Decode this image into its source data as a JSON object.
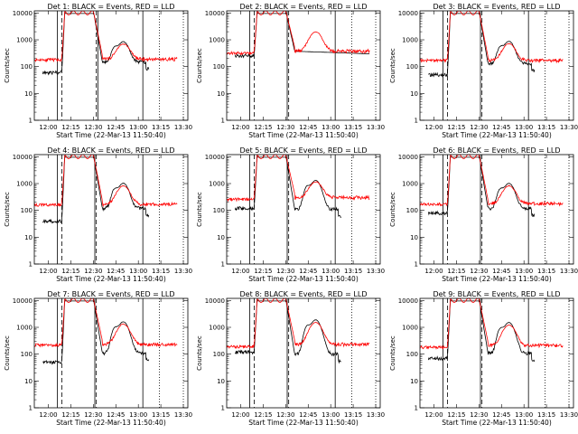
{
  "chart_data": {
    "type": "line",
    "layout": "3x3 grid of panels",
    "xaxis": {
      "xlabel": "Start Time (22-Mar-13 11:50:40)",
      "ticks": [
        "12:00",
        "12:15",
        "12:30",
        "12:45",
        "13:00",
        "13:15",
        "13:30"
      ],
      "range": [
        "11:50:40",
        "13:33"
      ]
    },
    "yaxis": {
      "ylabel": "Counts/sec",
      "scale": "log",
      "ticks": [
        "1",
        "10",
        "100",
        "1000",
        "10000"
      ],
      "range": [
        1,
        12000
      ]
    },
    "series_colors": {
      "Events": "#000000",
      "LLD": "#ff0000"
    },
    "panels": [
      {
        "title": "Det 1: BLACK = Events, RED = LLD",
        "events_peak": 12000,
        "lld_pre": 180,
        "lld_post": 190,
        "ev_pre": 60,
        "ev_post": 150,
        "second_peak": 700,
        "flat_ev": 0,
        "x": [
          "11:51",
          "11:55",
          "11:58",
          "12:00",
          "12:04",
          "12:06",
          "12:08",
          "12:10",
          "12:12",
          "12:15",
          "12:18",
          "12:22",
          "12:26",
          "12:30",
          "12:33",
          "12:36",
          "12:39",
          "12:42",
          "12:45",
          "12:48",
          "12:51",
          "12:54",
          "12:57",
          "13:00",
          "13:03",
          "13:06",
          "13:10",
          "13:14",
          "13:18",
          "13:22",
          "13:26",
          "13:29"
        ],
        "vlines_solid": [
          "12:06",
          "12:33",
          "13:03"
        ],
        "vlines_dashed": [
          "12:09",
          "12:32"
        ],
        "vlines_dotted": [
          "13:14",
          "13:30"
        ]
      },
      {
        "title": "Det 2: BLACK = Events, RED = LLD",
        "events_peak": 12000,
        "lld_pre": 320,
        "lld_post": 380,
        "ev_pre": 250,
        "ev_post": 380,
        "second_peak": 2200,
        "flat_ev": 1,
        "vlines_solid": [
          "12:06",
          "12:31",
          "13:03"
        ],
        "vlines_dashed": [
          "12:09",
          "12:32"
        ],
        "vlines_dotted": [
          "13:14",
          "13:30"
        ]
      },
      {
        "title": "Det 3: BLACK = Events, RED = LLD",
        "events_peak": 12000,
        "lld_pre": 170,
        "lld_post": 170,
        "ev_pre": 50,
        "ev_post": 130,
        "second_peak": 750,
        "flat_ev": 0,
        "vlines_solid": [
          "12:06",
          "12:31",
          "13:03"
        ],
        "vlines_dashed": [
          "12:09",
          "12:32"
        ],
        "vlines_dotted": [
          "13:14",
          "13:30"
        ]
      },
      {
        "title": "Det 4: BLACK = Events, RED = LLD",
        "events_peak": 12000,
        "lld_pre": 160,
        "lld_post": 170,
        "ev_pre": 40,
        "ev_post": 120,
        "second_peak": 900,
        "flat_ev": 0,
        "vlines_solid": [
          "12:06",
          "12:31",
          "13:03"
        ],
        "vlines_dashed": [
          "12:09",
          "12:32"
        ],
        "vlines_dotted": [
          "13:14",
          "13:30"
        ]
      },
      {
        "title": "Det 5: BLACK = Events, RED = LLD",
        "events_peak": 12000,
        "lld_pre": 260,
        "lld_post": 300,
        "ev_pre": 120,
        "ev_post": 110,
        "second_peak": 1200,
        "flat_ev": 0,
        "vlines_solid": [
          "12:06",
          "12:31",
          "13:03"
        ],
        "vlines_dashed": [
          "12:09",
          "12:32"
        ],
        "vlines_dotted": [
          "13:14",
          "13:30"
        ]
      },
      {
        "title": "Det 6: BLACK = Events, RED = LLD",
        "events_peak": 12000,
        "lld_pre": 170,
        "lld_post": 180,
        "ev_pre": 80,
        "ev_post": 120,
        "second_peak": 900,
        "flat_ev": 0,
        "vlines_solid": [
          "12:06",
          "12:31",
          "13:03"
        ],
        "vlines_dashed": [
          "12:09",
          "12:32"
        ],
        "vlines_dotted": [
          "13:14",
          "13:30"
        ]
      },
      {
        "title": "Det 7: BLACK = Events, RED = LLD",
        "events_peak": 12000,
        "lld_pre": 220,
        "lld_post": 230,
        "ev_pre": 50,
        "ev_post": 110,
        "second_peak": 1500,
        "flat_ev": 0,
        "vlines_solid": [
          "12:06",
          "12:31",
          "13:03"
        ],
        "vlines_dashed": [
          "12:09",
          "12:32"
        ],
        "vlines_dotted": [
          "13:14",
          "13:30"
        ]
      },
      {
        "title": "Det 8: BLACK = Events, RED = LLD",
        "events_peak": 12000,
        "lld_pre": 190,
        "lld_post": 230,
        "ev_pre": 120,
        "ev_post": 100,
        "second_peak": 1800,
        "flat_ev": 0,
        "vlines_solid": [
          "12:06",
          "12:31",
          "13:03"
        ],
        "vlines_dashed": [
          "12:09",
          "12:32"
        ],
        "vlines_dotted": [
          "13:14",
          "13:30"
        ]
      },
      {
        "title": "Det 9: BLACK = Events, RED = LLD",
        "events_peak": 12000,
        "lld_pre": 180,
        "lld_post": 210,
        "ev_pre": 70,
        "ev_post": 110,
        "second_peak": 1400,
        "flat_ev": 0,
        "vlines_solid": [
          "12:06",
          "12:31",
          "13:03"
        ],
        "vlines_dashed": [
          "12:09",
          "12:32"
        ],
        "vlines_dotted": [
          "13:14",
          "13:30"
        ]
      }
    ]
  }
}
